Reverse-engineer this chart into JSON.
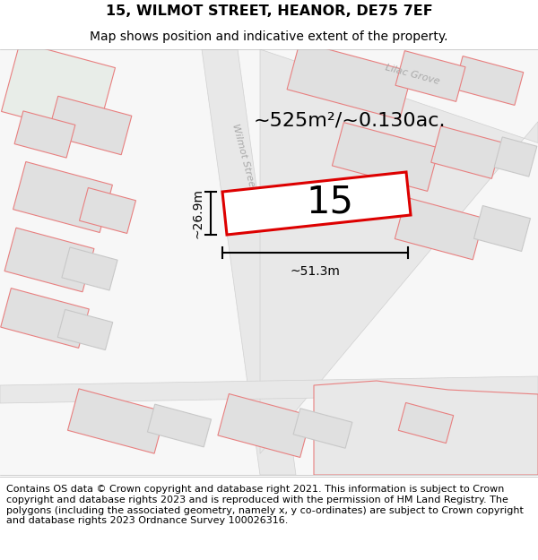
{
  "title_line1": "15, WILMOT STREET, HEANOR, DE75 7EF",
  "title_line2": "Map shows position and indicative extent of the property.",
  "footer_text": "Contains OS data © Crown copyright and database right 2021. This information is subject to Crown copyright and database rights 2023 and is reproduced with the permission of HM Land Registry. The polygons (including the associated geometry, namely x, y co-ordinates) are subject to Crown copyright and database rights 2023 Ordnance Survey 100026316.",
  "area_label": "~525m²/~0.130ac.",
  "number_label": "15",
  "width_label": "~51.3m",
  "height_label": "~26.9m",
  "street_label": "Wilmot Street",
  "street_label2": "Lilac Grove",
  "bg_color": "#f7f7f7",
  "white": "#ffffff",
  "bld_fill": "#e0e0e0",
  "bld_fill_light": "#ebebeb",
  "bld_fill_green": "#e8ede8",
  "pk": "#e88080",
  "pk2": "#d87070",
  "gray_edge": "#c8c8c8",
  "red": "#dd0000",
  "black": "#000000",
  "gray_text": "#aaaaaa",
  "title_fs": 11.5,
  "sub_fs": 10,
  "footer_fs": 8,
  "area_fs": 16,
  "num_fs": 30,
  "dim_fs": 10,
  "street_fs": 8
}
